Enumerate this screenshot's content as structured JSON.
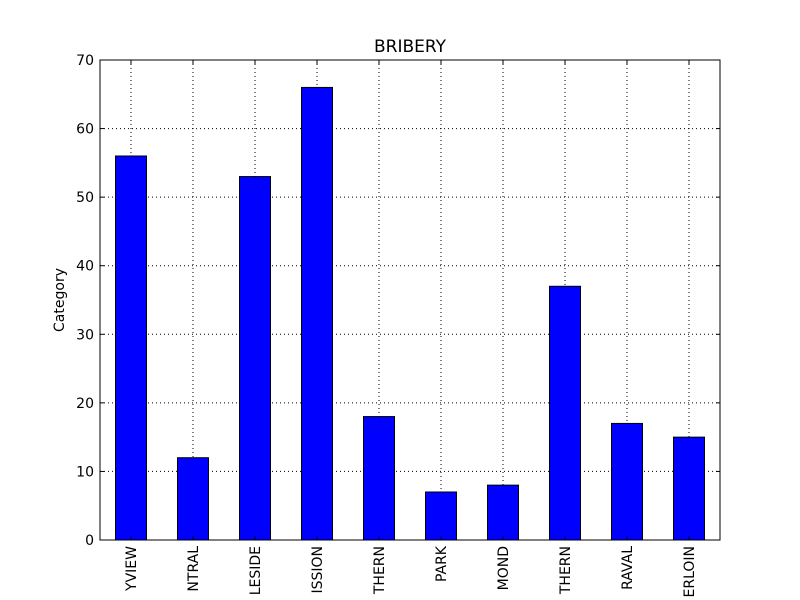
{
  "chart_data": {
    "type": "bar",
    "title": "BRIBERY",
    "xlabel": "",
    "ylabel": "Category",
    "categories": [
      "YVIEW",
      "NTRAL",
      "LESIDE",
      "ISSION",
      "THERN",
      "PARK",
      "MOND",
      "THERN",
      "RAVAL",
      "ERLOIN"
    ],
    "values": [
      56,
      12,
      53,
      66,
      18,
      7,
      8,
      37,
      17,
      15
    ],
    "ylim": [
      0,
      70
    ],
    "yticks": [
      0,
      10,
      20,
      30,
      40,
      50,
      60,
      70
    ],
    "grid": true,
    "legend": "none",
    "bar_color": "#0000ff"
  }
}
